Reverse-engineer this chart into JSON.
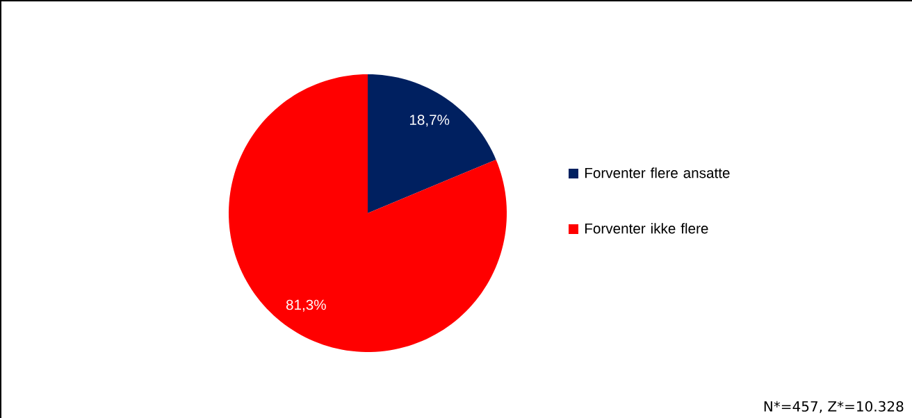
{
  "chart_data": {
    "type": "pie",
    "categories": [
      "Forventer flere ansatte",
      "Forventer ikke flere"
    ],
    "values": [
      18.7,
      81.3
    ],
    "colors": [
      "#002060",
      "#ff0000"
    ],
    "value_labels": [
      "18,7%",
      "81,3%"
    ],
    "legend": "right",
    "annotations": [
      "N*=457, Z*=10.328"
    ]
  }
}
